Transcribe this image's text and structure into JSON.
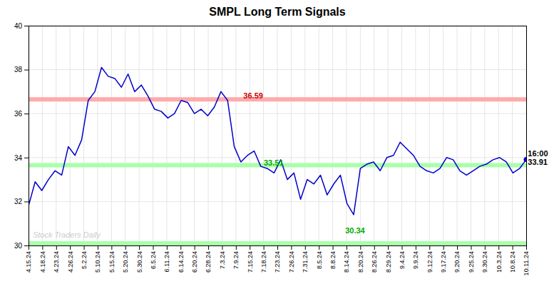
{
  "chart_data": {
    "type": "line",
    "title": "SMPL Long Term Signals",
    "color": "#0000cc",
    "x": [
      0,
      0.786666666667,
      1.573333333333,
      2.36,
      3.146666666667,
      3.933333333333,
      4.72,
      5.506666666667,
      6.293333333333,
      7.08,
      7.866666666667,
      8.653333333333,
      9.44,
      10.226666666667,
      11.013333333333,
      11.8,
      12.586666666667,
      13.373333333333,
      14.16,
      14.946666666667,
      15.733333333333,
      16.52,
      17.306666666667,
      18.093333333333,
      18.88,
      19.666666666667,
      20.453333333333,
      21.24,
      22.026666666667,
      22.813333333333,
      23.6,
      24.386666666667,
      25.173333333333,
      25.96,
      26.746666666667,
      27.533333333333,
      28.32,
      29.106666666667,
      29.893333333333,
      30.68,
      31.466666666667,
      32.253333333333,
      33.04,
      33.826666666667,
      34.613333333333,
      35.4,
      36.186666666667,
      36.973333333333,
      37.76,
      38.546666666667,
      39.333333333333,
      40.12,
      40.906666666667,
      41.693333333333,
      42.48,
      43.266666666667,
      44.053333333333,
      44.84,
      45.626666666667,
      46.413333333333,
      47.2,
      47.986666666667,
      48.773333333333,
      49.56,
      50.346666666667,
      51.133333333333,
      51.92,
      52.706666666667,
      53.493333333333,
      54.28,
      55.066666666667,
      55.853333333333,
      56.64,
      57.426666666667,
      58.213333333333,
      59
    ],
    "values": [
      31.8,
      32.9,
      32.5,
      33.0,
      33.4,
      33.2,
      34.5,
      34.1,
      34.8,
      36.6,
      37.0,
      38.1,
      37.7,
      37.6,
      37.2,
      37.8,
      37.0,
      37.3,
      36.8,
      36.2,
      36.1,
      35.8,
      36.0,
      36.6,
      36.5,
      36.0,
      36.2,
      35.9,
      36.3,
      37.0,
      36.6,
      34.5,
      33.8,
      34.1,
      34.3,
      33.6,
      33.5,
      33.3,
      33.9,
      33.0,
      33.3,
      32.1,
      33.0,
      32.8,
      33.2,
      32.3,
      32.8,
      33.2,
      31.9,
      31.4,
      33.5,
      33.7,
      33.8,
      33.4,
      34.0,
      34.1,
      34.7,
      34.4,
      34.1,
      33.6,
      33.4,
      33.3,
      33.5,
      34.0,
      33.9,
      33.4,
      33.2,
      33.4,
      33.6,
      33.7,
      33.9,
      34.0,
      33.8,
      33.3,
      33.5,
      33.91
    ],
    "xlim": [
      0,
      59
    ],
    "ylim": [
      30,
      40
    ],
    "xticks": [
      {
        "value": 0,
        "label": "4.15.24"
      },
      {
        "value": 1.638888888889,
        "label": "4.18.24"
      },
      {
        "value": 3.277777777778,
        "label": "4.23.24"
      },
      {
        "value": 4.916666666667,
        "label": "4.26.24"
      },
      {
        "value": 6.555555555556,
        "label": "5.2.24"
      },
      {
        "value": 8.194444444444,
        "label": "5.10.24"
      },
      {
        "value": 9.833333333333,
        "label": "5.15.24"
      },
      {
        "value": 11.472222222222,
        "label": "5.20.24"
      },
      {
        "value": 13.111111111111,
        "label": "5.30.24"
      },
      {
        "value": 14.75,
        "label": "6.5.24"
      },
      {
        "value": 16.388888888889,
        "label": "6.11.24"
      },
      {
        "value": 18.027777777778,
        "label": "6.14.24"
      },
      {
        "value": 19.666666666667,
        "label": "6.20.24"
      },
      {
        "value": 21.305555555556,
        "label": "6.28.24"
      },
      {
        "value": 22.944444444444,
        "label": "7.3.24"
      },
      {
        "value": 24.583333333333,
        "label": "7.9.24"
      },
      {
        "value": 26.222222222222,
        "label": "7.15.24"
      },
      {
        "value": 27.861111111111,
        "label": "7.18.24"
      },
      {
        "value": 29.5,
        "label": "7.23.24"
      },
      {
        "value": 31.138888888889,
        "label": "7.26.24"
      },
      {
        "value": 32.777777777778,
        "label": "7.31.24"
      },
      {
        "value": 34.416666666667,
        "label": "8.5.24"
      },
      {
        "value": 36.055555555556,
        "label": "8.8.24"
      },
      {
        "value": 37.694444444444,
        "label": "8.14.24"
      },
      {
        "value": 39.333333333333,
        "label": "8.20.24"
      },
      {
        "value": 40.972222222222,
        "label": "8.26.24"
      },
      {
        "value": 42.611111111111,
        "label": "8.29.24"
      },
      {
        "value": 44.25,
        "label": "9.4.24"
      },
      {
        "value": 45.888888888889,
        "label": "9.9.24"
      },
      {
        "value": 47.527777777778,
        "label": "9.12.24"
      },
      {
        "value": 49.166666666667,
        "label": "9.17.24"
      },
      {
        "value": 50.805555555556,
        "label": "9.20.24"
      },
      {
        "value": 52.444444444444,
        "label": "9.25.24"
      },
      {
        "value": 54.083333333333,
        "label": "9.30.24"
      },
      {
        "value": 55.722222222222,
        "label": "10.3.24"
      },
      {
        "value": 57.361111111111,
        "label": "10.8.24"
      },
      {
        "value": 59,
        "label": "10.11.24"
      }
    ],
    "yticks": [
      30,
      32,
      34,
      36,
      38,
      40
    ],
    "grid": true,
    "hlines": [
      {
        "value": 36.65,
        "color": "#ffaaaa"
      },
      {
        "value": 33.65,
        "color": "#aaffaa"
      },
      {
        "value": 30.1,
        "color": "#aaffaa"
      }
    ],
    "watermark": {
      "text": "Stock Traders Daily",
      "color": "#cccccc",
      "x": 0.5,
      "y": 30.35
    },
    "annotations": [
      {
        "text": "36.59",
        "color": "#cc0000",
        "x": 25.473333333333,
        "y": 36.7
      },
      {
        "text": "33.51",
        "color": "#00aa00",
        "x": 27.893333333333,
        "y": 33.65
      },
      {
        "text": "30.34",
        "color": "#00aa00",
        "x": 37.546666666667,
        "y": 30.55
      },
      {
        "text": "16:00",
        "color": "#000000",
        "x": 59.2,
        "y": 34.06
      },
      {
        "text": "33.91",
        "color": "#000000",
        "x": 59.2,
        "y": 33.66
      }
    ]
  }
}
